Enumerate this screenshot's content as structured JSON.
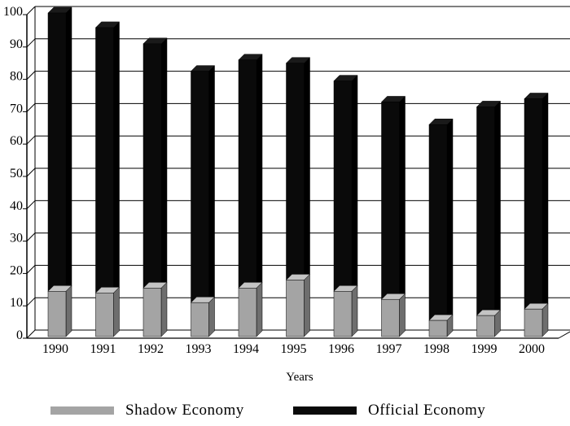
{
  "colors": {
    "shadow": "#a4a4a4",
    "official": "#0a0a0a",
    "grid": "#000000"
  },
  "chart_data": {
    "type": "bar",
    "stacked": true,
    "title": "",
    "xlabel": "Years",
    "ylabel": "",
    "ylim": [
      0,
      100
    ],
    "yticks": [
      0,
      10,
      20,
      30,
      40,
      50,
      60,
      70,
      80,
      90,
      100
    ],
    "grid": true,
    "legend_position": "bottom",
    "categories": [
      "1990",
      "1991",
      "1992",
      "1993",
      "1994",
      "1995",
      "1996",
      "1997",
      "1998",
      "1999",
      "2000"
    ],
    "series": [
      {
        "name": "Shadow Economy",
        "values": [
          14,
          13.5,
          15,
          10.5,
          15,
          17.5,
          14,
          11.5,
          5,
          6.5,
          8.5
        ]
      },
      {
        "name": "Official Economy",
        "values": [
          86,
          82,
          75.5,
          71.5,
          70.5,
          67,
          65,
          61,
          60.5,
          64.5,
          65
        ]
      }
    ]
  }
}
